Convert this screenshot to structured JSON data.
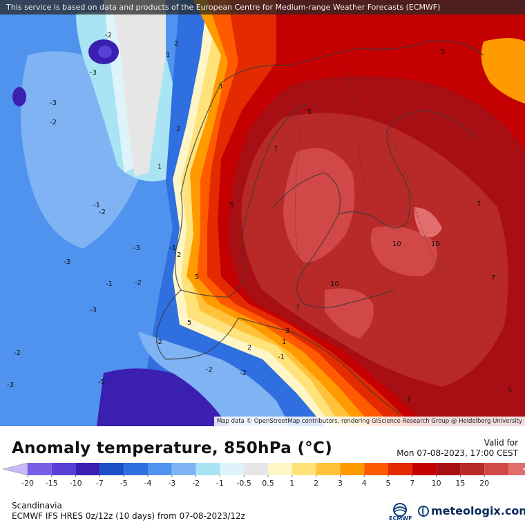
{
  "header": {
    "notice": "This service is based on data and products of the European Centre for Medium-range Weather Forecasts (ECMWF)"
  },
  "map": {
    "attribution": "Map data © OpenStreetMap contributors, rendering GIScience Research Group @ Heidelberg University",
    "contour_labels": [
      {
        "text": "-2"
      },
      {
        "text": "-3"
      },
      {
        "text": "-3"
      },
      {
        "text": "-2"
      },
      {
        "text": "1"
      },
      {
        "text": "2"
      },
      {
        "text": "3"
      },
      {
        "text": "2"
      },
      {
        "text": "1"
      },
      {
        "text": "-1"
      },
      {
        "text": "-2"
      },
      {
        "text": "-3"
      },
      {
        "text": "-1"
      },
      {
        "text": "-3"
      },
      {
        "text": "-2"
      },
      {
        "text": "-1"
      },
      {
        "text": "-3"
      },
      {
        "text": "-2"
      },
      {
        "text": "-2"
      },
      {
        "text": "-3"
      },
      {
        "text": "-5"
      },
      {
        "text": "-2"
      },
      {
        "text": "-2"
      },
      {
        "text": "2"
      },
      {
        "text": "5"
      },
      {
        "text": "1"
      },
      {
        "text": "-1"
      },
      {
        "text": "3"
      },
      {
        "text": "2"
      },
      {
        "text": "7"
      },
      {
        "text": "7"
      },
      {
        "text": "10"
      },
      {
        "text": "10"
      },
      {
        "text": "10"
      },
      {
        "text": "7"
      },
      {
        "text": "7"
      },
      {
        "text": "5"
      },
      {
        "text": "5"
      },
      {
        "text": "5"
      },
      {
        "text": "5"
      },
      {
        "text": "7"
      },
      {
        "text": "5"
      }
    ]
  },
  "title": "Anomaly temperature, 850hPa (°C)",
  "valid": {
    "label": "Valid for",
    "datetime": "Mon 07-08-2023, 17:00 CEST"
  },
  "legend": {
    "colors": [
      "#a98cf2",
      "#7a5de6",
      "#5a3fd6",
      "#3a1fb0",
      "#1f4fc8",
      "#2f6fe0",
      "#4f93ee",
      "#7fb3f4",
      "#a9e4f4",
      "#dff4fa",
      "#e6e6e6",
      "#fff6c8",
      "#ffe27a",
      "#ffc23a",
      "#ff9a00",
      "#ff5a00",
      "#e42a00",
      "#c40000",
      "#a80f14",
      "#b82a2a",
      "#d24848",
      "#e46e6e",
      "#f2a0a0"
    ],
    "ticks": [
      "-20",
      "-15",
      "-10",
      "-7",
      "-5",
      "-4",
      "-3",
      "-2",
      "-1",
      "-0.5",
      "0.5",
      "1",
      "2",
      "3",
      "4",
      "5",
      "7",
      "10",
      "15",
      "20"
    ]
  },
  "footer": {
    "region": "Scandinavia",
    "model": "ECMWF IFS HRES 0z/12z (10 days) from 07-08-2023/12z",
    "ecmwf_logo_text": "ECMWF",
    "brand": "meteologix.com"
  }
}
